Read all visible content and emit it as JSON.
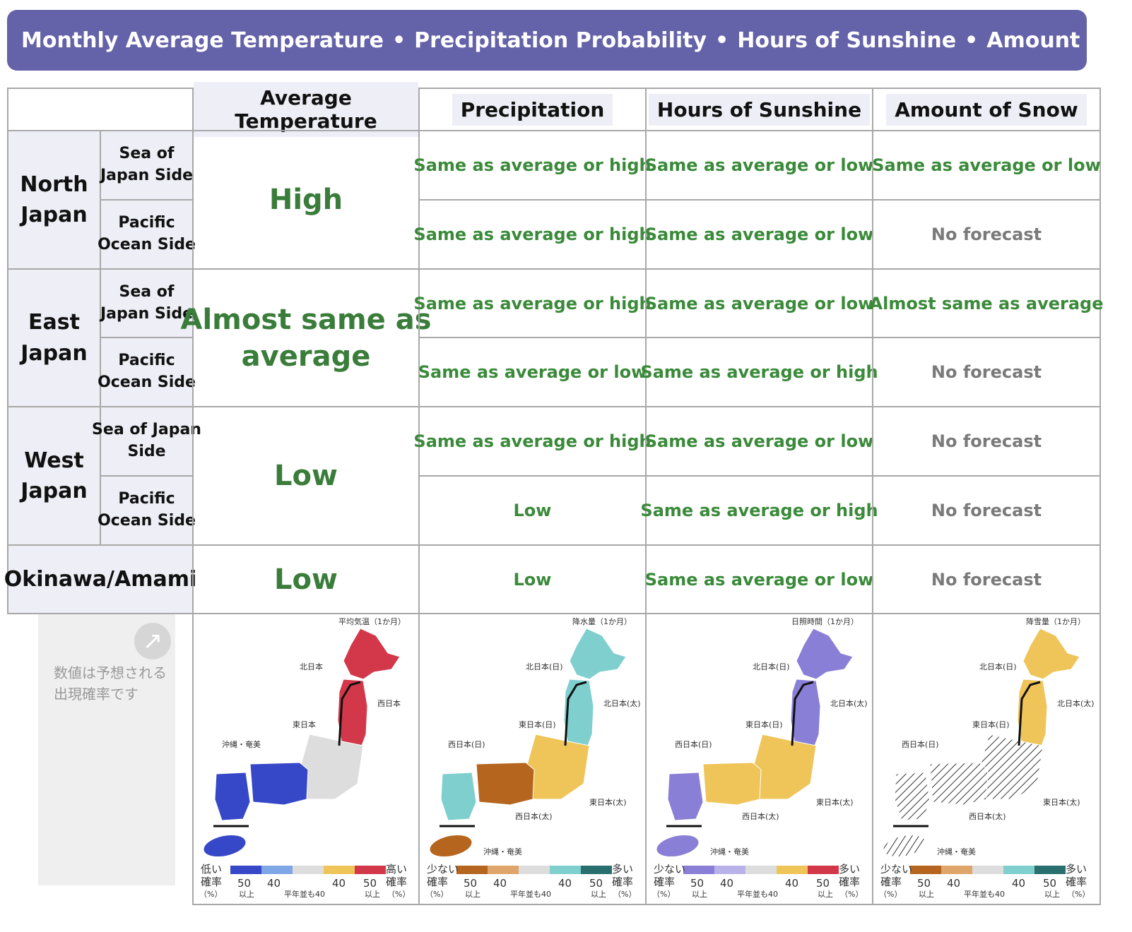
{
  "banner": {
    "items": [
      "Monthly Average Temperature",
      "Precipitation Probability",
      "Hours of Sunshine",
      "Amount of Snow"
    ],
    "separator": "•"
  },
  "headers": {
    "temp": "Average Temperature",
    "precip": "Precipitation",
    "sun": "Hours of Sunshine",
    "snow": "Amount of Snow"
  },
  "regions": {
    "north": "North\nJapan",
    "east": "East\nJapan",
    "west": "West\nJapan",
    "okinawa": "Okinawa/Amami"
  },
  "subregions": {
    "north_sea": "Sea of\nJapan Side",
    "north_pac": "Pacific\nOcean Side",
    "east_sea": "Sea of\nJapan Side",
    "east_pac": "Pacific\nOcean Side",
    "west_sea": "Sea of Japan\nSide",
    "west_pac": "Pacific\nOcean Side"
  },
  "temperature": {
    "north": "High",
    "east": "Almost same as\naverage",
    "west": "Low",
    "okinawa": "Low"
  },
  "rows": {
    "north_sea": {
      "precip": "Same as average or high",
      "sun": "Same as average or low",
      "snow": "Same as average or low"
    },
    "north_pac": {
      "precip": "Same as average or high",
      "sun": "Same as average or low",
      "snow": "No forecast"
    },
    "east_sea": {
      "precip": "Same as average or high",
      "sun": "Same as average or low",
      "snow": "Almost same as average"
    },
    "east_pac": {
      "precip": "Same as average or low",
      "sun": "Same as average or high",
      "snow": "No forecast"
    },
    "west_sea": {
      "precip": "Same as average or high",
      "sun": "Same as average or low",
      "snow": "No forecast"
    },
    "west_pac": {
      "precip": "Low",
      "sun": "Same as average or high",
      "snow": "No forecast"
    },
    "okinawa": {
      "precip": "Low",
      "sun": "Same as average or low",
      "snow": "No forecast"
    }
  },
  "note": {
    "text": "数値は予想される\n出現確率です",
    "icon": "arrow-up-right-icon"
  },
  "maps": {
    "temp": {
      "title": "平均気温（1か月）",
      "labels": [
        "北日本",
        "西日本",
        "東日本",
        "沖縄・奄美"
      ],
      "low": "低い\n確率\n（%）",
      "high": "高い\n確率\n（%）"
    },
    "precip": {
      "title": "降水量（1か月）",
      "labels": [
        "北日本(日)",
        "北日本(太)",
        "東日本(日)",
        "西日本(日)",
        "東日本(太)",
        "西日本(太)",
        "沖縄・奄美"
      ],
      "low": "少ない\n確率\n（%）",
      "high": "多い\n確率\n（%）"
    },
    "sun": {
      "title": "日照時間（1か月）",
      "labels": [
        "北日本(日)",
        "北日本(太)",
        "東日本(日)",
        "西日本(日)",
        "東日本(太)",
        "西日本(太)",
        "沖縄・奄美"
      ],
      "low": "少ない\n確率\n（%）",
      "high": "多い\n確率\n（%）"
    },
    "snow": {
      "title": "降雪量（1か月）",
      "labels": [
        "北日本(日)",
        "北日本(太)",
        "東日本(日)",
        "西日本(日)",
        "東日本(太)",
        "西日本(太)",
        "沖縄・奄美"
      ],
      "low": "少ない\n確率\n（%）",
      "high": "多い\n確率\n（%）"
    },
    "scale": {
      "n50": "50",
      "n40": "40",
      "ijou": "以上",
      "normal": "平年並も40"
    }
  },
  "colors": {
    "banner": "#6462a8",
    "green_text": "#3a8a3a",
    "red": "#d3374a",
    "blue": "#3648c8",
    "teal": "#7fcfcf",
    "brown": "#b5651d",
    "yellow": "#efc55a",
    "purple": "#8a7fd6",
    "gray": "#dddddd"
  }
}
